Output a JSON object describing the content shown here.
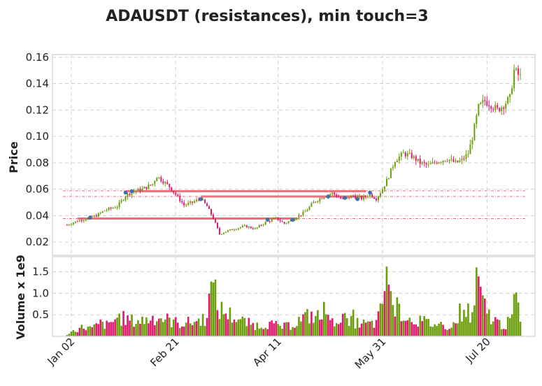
{
  "chart_data": {
    "type": "candlestick",
    "title": "ADAUSDT (resistances), min touch=3",
    "x_tick_labels": [
      "Jan 02",
      "Feb 21",
      "Apr 11",
      "May 31",
      "Jul 20"
    ],
    "x_tick_days": [
      2,
      52,
      101,
      151,
      201
    ],
    "x_range_days": [
      -7,
      224
    ],
    "price_panel": {
      "ylabel": "Price",
      "ylim": [
        0.01,
        0.162
      ],
      "yticks": [
        0.02,
        0.04,
        0.06,
        0.08,
        0.1,
        0.12,
        0.14,
        0.16
      ],
      "ytick_labels": [
        "0.02",
        "0.04",
        "0.06",
        "0.08",
        "0.10",
        "0.12",
        "0.14",
        "0.16"
      ],
      "close_keypoints": [
        [
          0,
          0.033
        ],
        [
          5,
          0.036
        ],
        [
          10,
          0.038
        ],
        [
          14,
          0.04
        ],
        [
          18,
          0.044
        ],
        [
          24,
          0.047
        ],
        [
          28,
          0.055
        ],
        [
          31,
          0.058
        ],
        [
          36,
          0.06
        ],
        [
          41,
          0.064
        ],
        [
          43,
          0.07
        ],
        [
          46,
          0.066
        ],
        [
          49,
          0.062
        ],
        [
          52,
          0.056
        ],
        [
          56,
          0.048
        ],
        [
          60,
          0.05
        ],
        [
          64,
          0.053
        ],
        [
          67,
          0.047
        ],
        [
          70,
          0.038
        ],
        [
          73,
          0.026
        ],
        [
          76,
          0.028
        ],
        [
          80,
          0.03
        ],
        [
          85,
          0.032
        ],
        [
          90,
          0.03
        ],
        [
          95,
          0.035
        ],
        [
          100,
          0.038
        ],
        [
          104,
          0.034
        ],
        [
          108,
          0.037
        ],
        [
          114,
          0.043
        ],
        [
          118,
          0.05
        ],
        [
          122,
          0.054
        ],
        [
          127,
          0.057
        ],
        [
          132,
          0.052
        ],
        [
          137,
          0.055
        ],
        [
          141,
          0.053
        ],
        [
          145,
          0.056
        ],
        [
          148,
          0.053
        ],
        [
          151,
          0.06
        ],
        [
          154,
          0.07
        ],
        [
          157,
          0.082
        ],
        [
          161,
          0.087
        ],
        [
          165,
          0.085
        ],
        [
          169,
          0.08
        ],
        [
          173,
          0.078
        ],
        [
          177,
          0.081
        ],
        [
          182,
          0.083
        ],
        [
          186,
          0.08
        ],
        [
          189,
          0.082
        ],
        [
          192,
          0.087
        ],
        [
          194,
          0.099
        ],
        [
          197,
          0.122
        ],
        [
          200,
          0.127
        ],
        [
          203,
          0.124
        ],
        [
          206,
          0.12
        ],
        [
          209,
          0.124
        ],
        [
          212,
          0.129
        ],
        [
          214,
          0.15
        ],
        [
          217,
          0.145
        ]
      ],
      "resistance_lines": [
        {
          "y": 0.0585,
          "x_start": 28,
          "x_end": 143,
          "color": "#e8737c"
        },
        {
          "y": 0.0545,
          "x_start": 64,
          "x_end": 143,
          "color": "#e8737c"
        },
        {
          "y": 0.0378,
          "x_start": 5,
          "x_end": 110,
          "color": "#e8737c"
        }
      ],
      "dash_dot_levels": [
        {
          "y": 0.0588,
          "color": "#e0737c"
        },
        {
          "y": 0.0545,
          "color": "#e0737c"
        },
        {
          "y": 0.0378,
          "color": "#e0737c"
        }
      ],
      "touch_points": [
        [
          11,
          0.0385
        ],
        [
          28,
          0.0575
        ],
        [
          31,
          0.0585
        ],
        [
          64,
          0.0525
        ],
        [
          96,
          0.037
        ],
        [
          108,
          0.0368
        ],
        [
          125,
          0.0545
        ],
        [
          133,
          0.0535
        ],
        [
          139,
          0.0525
        ],
        [
          145,
          0.0575
        ]
      ]
    },
    "volume_panel": {
      "ylabel": "Volume x 1e9",
      "ylim": [
        0,
        1.85
      ],
      "yticks": [
        0.5,
        1.0,
        1.5
      ],
      "ytick_labels": [
        "0.5",
        "1.0",
        "1.5"
      ],
      "volume_keypoints": [
        [
          0,
          0.05
        ],
        [
          4,
          0.15
        ],
        [
          8,
          0.22
        ],
        [
          12,
          0.18
        ],
        [
          16,
          0.3
        ],
        [
          20,
          0.25
        ],
        [
          24,
          0.45
        ],
        [
          28,
          0.4
        ],
        [
          32,
          0.35
        ],
        [
          38,
          0.38
        ],
        [
          42,
          0.45
        ],
        [
          46,
          0.42
        ],
        [
          50,
          0.35
        ],
        [
          54,
          0.3
        ],
        [
          58,
          0.32
        ],
        [
          62,
          0.35
        ],
        [
          66,
          0.42
        ],
        [
          68,
          0.85
        ],
        [
          70,
          1.25
        ],
        [
          72,
          0.65
        ],
        [
          76,
          0.55
        ],
        [
          80,
          0.45
        ],
        [
          84,
          0.35
        ],
        [
          88,
          0.28
        ],
        [
          92,
          0.25
        ],
        [
          96,
          0.3
        ],
        [
          100,
          0.25
        ],
        [
          104,
          0.22
        ],
        [
          108,
          0.28
        ],
        [
          112,
          0.4
        ],
        [
          116,
          0.48
        ],
        [
          120,
          0.45
        ],
        [
          124,
          0.4
        ],
        [
          128,
          0.38
        ],
        [
          132,
          0.45
        ],
        [
          136,
          0.35
        ],
        [
          140,
          0.3
        ],
        [
          144,
          0.28
        ],
        [
          148,
          0.3
        ],
        [
          150,
          0.55
        ],
        [
          152,
          1.1
        ],
        [
          154,
          1.2
        ],
        [
          156,
          0.95
        ],
        [
          158,
          0.7
        ],
        [
          162,
          0.45
        ],
        [
          166,
          0.4
        ],
        [
          170,
          0.35
        ],
        [
          174,
          0.3
        ],
        [
          178,
          0.28
        ],
        [
          182,
          0.25
        ],
        [
          186,
          0.3
        ],
        [
          188,
          0.55
        ],
        [
          190,
          0.7
        ],
        [
          192,
          0.55
        ],
        [
          194,
          0.45
        ],
        [
          196,
          0.85
        ],
        [
          197,
          1.1
        ],
        [
          199,
          0.75
        ],
        [
          201,
          0.55
        ],
        [
          204,
          0.4
        ],
        [
          207,
          0.3
        ],
        [
          210,
          0.25
        ],
        [
          213,
          0.45
        ],
        [
          214,
          0.9
        ],
        [
          216,
          0.75
        ],
        [
          217,
          0.28
        ]
      ],
      "volume_spikes": [
        [
          70,
          1.25
        ],
        [
          71,
          1.32
        ],
        [
          152,
          1.05
        ],
        [
          153,
          1.62
        ],
        [
          155,
          1.05
        ],
        [
          196,
          1.6
        ],
        [
          214,
          0.98
        ],
        [
          215,
          1.02
        ],
        [
          137,
          0.62
        ],
        [
          123,
          0.8
        ]
      ]
    },
    "up_color": "#6b9e0a",
    "down_color": "#e0196f",
    "touch_color": "#3d6fa8"
  }
}
